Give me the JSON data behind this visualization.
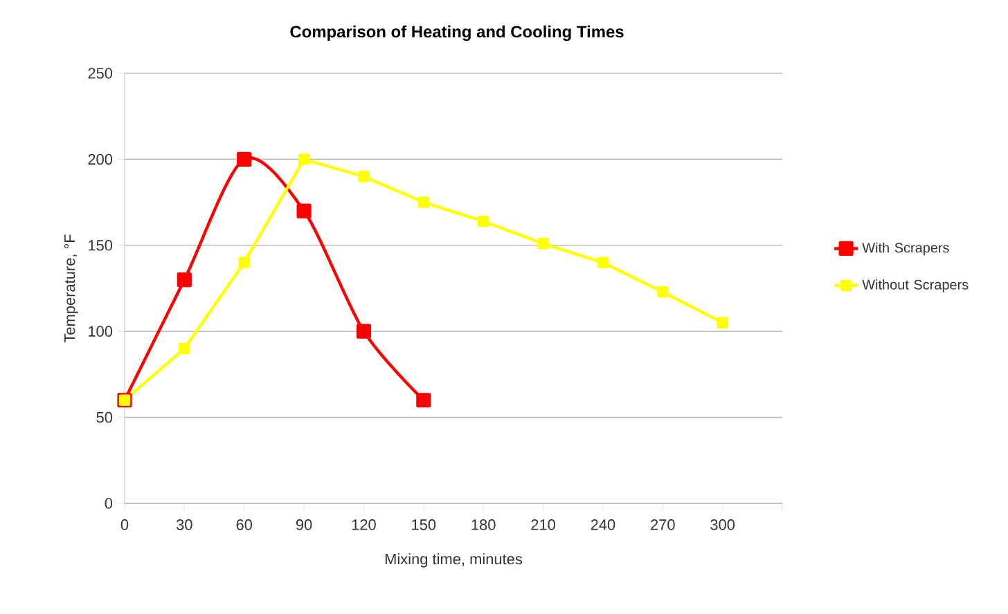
{
  "chart_data": {
    "type": "line",
    "title": "Comparison of Heating and Cooling Times",
    "xlabel": "Mixing time, minutes",
    "ylabel": "Temperature, °F",
    "series": [
      {
        "name": "With Scrapers",
        "color": "#ff0000",
        "x": [
          0,
          30,
          60,
          90,
          120,
          150
        ],
        "values": [
          60,
          130,
          200,
          170,
          100,
          60
        ]
      },
      {
        "name": "Without Scrapers",
        "color": "#ffff00",
        "x": [
          0,
          30,
          60,
          90,
          120,
          150,
          180,
          210,
          240,
          270,
          300
        ],
        "values": [
          60,
          90,
          140,
          200,
          190,
          175,
          164,
          151,
          140,
          123,
          105
        ]
      }
    ],
    "xlim": [
      0,
      330
    ],
    "xticks": [
      0,
      30,
      60,
      90,
      120,
      150,
      180,
      210,
      240,
      270,
      300,
      {
        "value": 330,
        "label": null
      }
    ],
    "ylim": [
      0,
      250
    ],
    "yticks": [
      0,
      50,
      100,
      150,
      200,
      250
    ],
    "grid": "y",
    "legend": "right",
    "marker": "square",
    "line_style": "solid"
  }
}
